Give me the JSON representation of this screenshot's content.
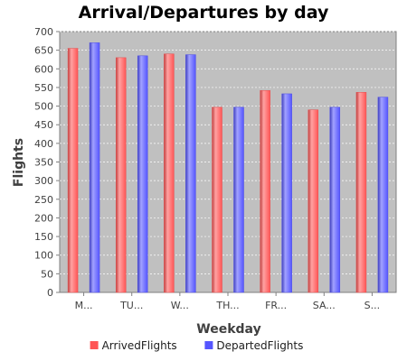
{
  "chart_data": {
    "type": "bar",
    "title": "Arrival/Departures by day",
    "xlabel": "Weekday",
    "ylabel": "Flights",
    "categories": [
      "M...",
      "TU...",
      "W...",
      "TH...",
      "FR...",
      "SA...",
      "S..."
    ],
    "series": [
      {
        "name": "ArrivedFlights",
        "color": "#ff5555",
        "values": [
          655,
          630,
          640,
          497,
          542,
          490,
          537
        ]
      },
      {
        "name": "DepartedFlights",
        "color": "#5555ff",
        "values": [
          670,
          635,
          638,
          497,
          533,
          497,
          524
        ]
      }
    ],
    "ylim": [
      0,
      700
    ],
    "yticks": [
      0,
      50,
      100,
      150,
      200,
      250,
      300,
      350,
      400,
      450,
      500,
      550,
      600,
      650,
      700
    ],
    "grid": true,
    "plot_background": "#c0c0c0",
    "legend_position": "bottom"
  }
}
